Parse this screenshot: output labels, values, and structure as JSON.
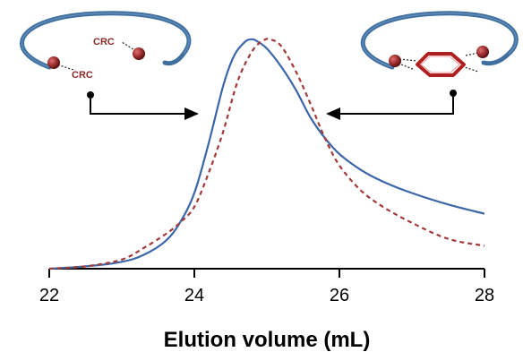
{
  "chart_data": {
    "type": "line",
    "xlabel": "Elution volume (mL)",
    "ylabel": "",
    "title": "",
    "xlim": [
      22,
      28
    ],
    "xticks": [
      22,
      24,
      26,
      28
    ],
    "ylim": [
      0,
      1.05
    ],
    "grid": false,
    "series": [
      {
        "color": "#3b67a8",
        "style": "solid",
        "x": [
          22.0,
          22.5,
          23.0,
          23.3,
          23.6,
          23.8,
          24.0,
          24.2,
          24.4,
          24.55,
          24.7,
          24.78,
          24.85,
          25.0,
          25.2,
          25.4,
          25.6,
          25.8,
          26.0,
          26.3,
          26.6,
          27.0,
          27.5,
          28.0
        ],
        "y": [
          0.0,
          0.01,
          0.03,
          0.06,
          0.12,
          0.2,
          0.33,
          0.55,
          0.8,
          0.93,
          0.99,
          1.0,
          0.995,
          0.96,
          0.88,
          0.78,
          0.66,
          0.57,
          0.5,
          0.43,
          0.38,
          0.33,
          0.28,
          0.24
        ]
      },
      {
        "color": "#a33a3a",
        "style": "dashed",
        "x": [
          22.0,
          22.5,
          23.0,
          23.3,
          23.6,
          23.8,
          24.0,
          24.2,
          24.4,
          24.6,
          24.8,
          24.95,
          25.05,
          25.2,
          25.4,
          25.6,
          25.8,
          26.0,
          26.3,
          26.6,
          27.0,
          27.5,
          28.0
        ],
        "y": [
          0.0,
          0.01,
          0.04,
          0.09,
          0.15,
          0.2,
          0.27,
          0.42,
          0.6,
          0.82,
          0.95,
          0.995,
          1.0,
          0.97,
          0.86,
          0.72,
          0.57,
          0.45,
          0.34,
          0.27,
          0.2,
          0.13,
          0.1
        ]
      }
    ]
  },
  "insets": {
    "left": {
      "icon": "linear-polymer-crc-ends-icon",
      "label_a": "CRC",
      "label_b": "CRC"
    },
    "right": {
      "icon": "cyclized-polymer-benzene-icon"
    }
  },
  "colors": {
    "polymer": "#3f6f9f",
    "bead": "#a23030",
    "crc_text": "#8a2a2a",
    "ring": "#b02020"
  }
}
